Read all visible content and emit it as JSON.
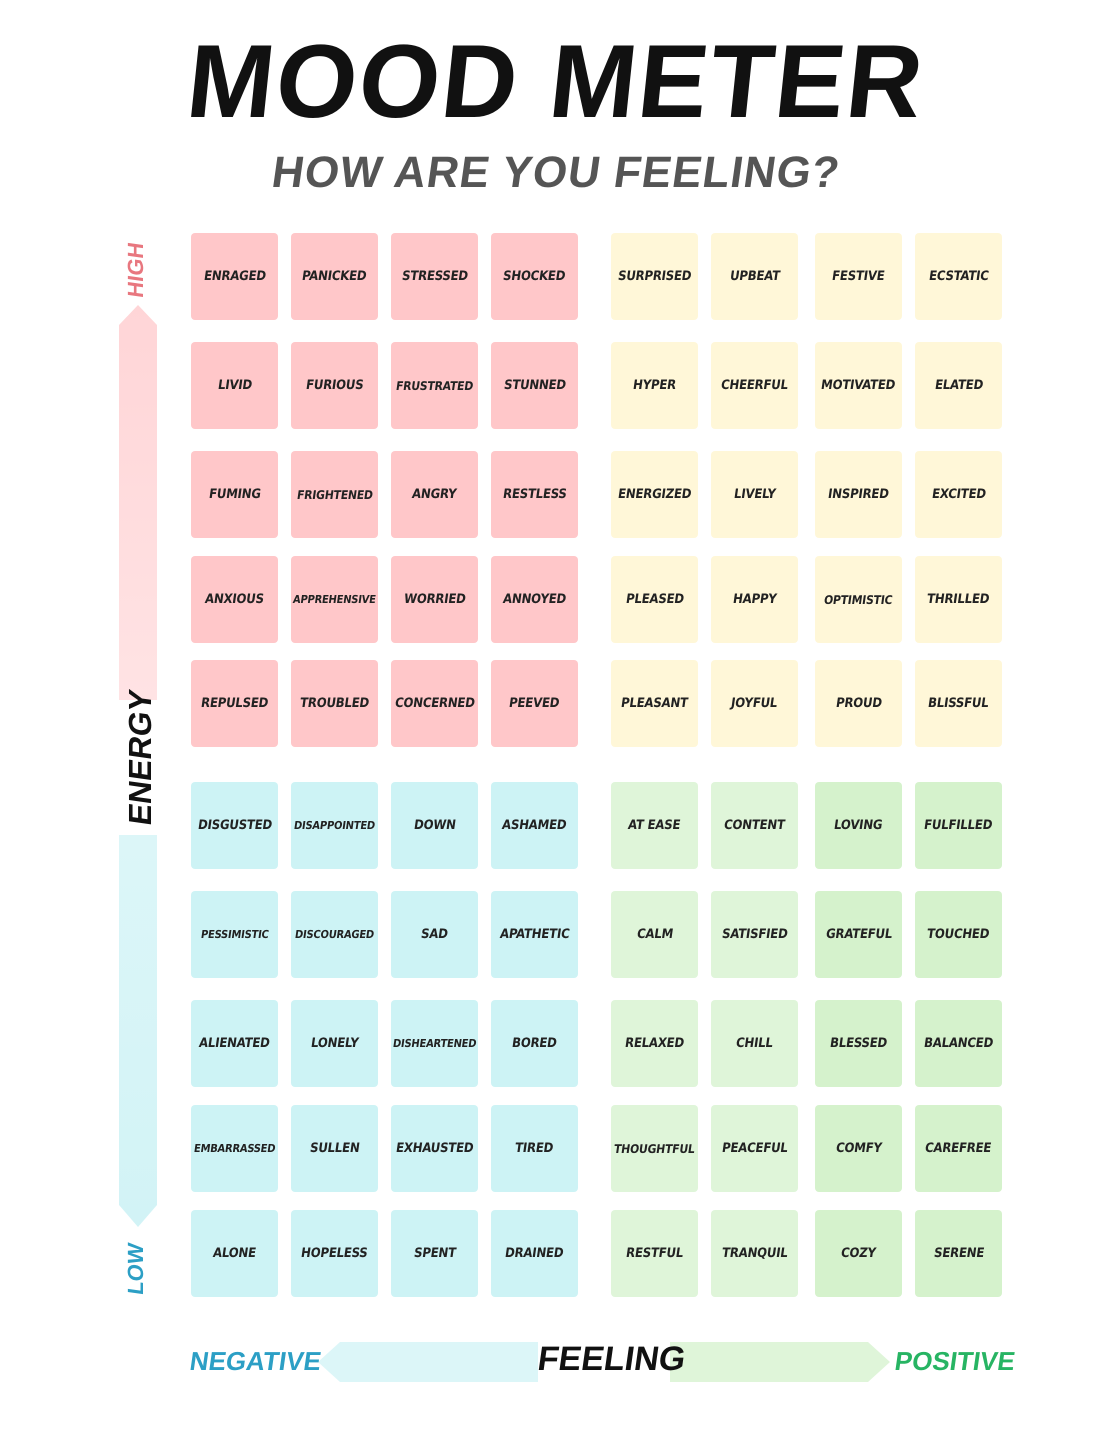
{
  "header": {
    "title": "MOOD METER",
    "subtitle": "HOW ARE YOU FEELING?"
  },
  "axes": {
    "vertical": {
      "label": "ENERGY",
      "high": "HIGH",
      "low": "LOW"
    },
    "horizontal": {
      "label": "FEELING",
      "negative": "NEGATIVE",
      "positive": "POSITIVE"
    }
  },
  "colors": {
    "high_negative": "#ffc7c9",
    "high_positive": "#fff7d8",
    "low_negative": "#cdf3f5",
    "low_positive": "#dff5d9",
    "high_label": "#e8777f",
    "low_label": "#2c9fc5",
    "negative_label": "#2c9fc5",
    "positive_label": "#27b463"
  },
  "grid": {
    "rows": [
      [
        "ENRAGED",
        "PANICKED",
        "STRESSED",
        "SHOCKED",
        "SURPRISED",
        "UPBEAT",
        "FESTIVE",
        "ECSTATIC"
      ],
      [
        "LIVID",
        "FURIOUS",
        "FRUSTRATED",
        "STUNNED",
        "HYPER",
        "CHEERFUL",
        "MOTIVATED",
        "ELATED"
      ],
      [
        "FUMING",
        "FRIGHTENED",
        "ANGRY",
        "RESTLESS",
        "ENERGIZED",
        "LIVELY",
        "INSPIRED",
        "EXCITED"
      ],
      [
        "ANXIOUS",
        "APPREHENSIVE",
        "WORRIED",
        "ANNOYED",
        "PLEASED",
        "HAPPY",
        "OPTIMISTIC",
        "THRILLED"
      ],
      [
        "REPULSED",
        "TROUBLED",
        "CONCERNED",
        "PEEVED",
        "PLEASANT",
        "JOYFUL",
        "PROUD",
        "BLISSFUL"
      ],
      [
        "DISGUSTED",
        "DISAPPOINTED",
        "DOWN",
        "ASHAMED",
        "AT EASE",
        "CONTENT",
        "LOVING",
        "FULFILLED"
      ],
      [
        "PESSIMISTIC",
        "DISCOURAGED",
        "SAD",
        "APATHETIC",
        "CALM",
        "SATISFIED",
        "GRATEFUL",
        "TOUCHED"
      ],
      [
        "ALIENATED",
        "LONELY",
        "DISHEARTENED",
        "BORED",
        "RELAXED",
        "CHILL",
        "BLESSED",
        "BALANCED"
      ],
      [
        "EMBARRASSED",
        "SULLEN",
        "EXHAUSTED",
        "TIRED",
        "THOUGHTFUL",
        "PEACEFUL",
        "COMFY",
        "CAREFREE"
      ],
      [
        "ALONE",
        "HOPELESS",
        "SPENT",
        "DRAINED",
        "RESTFUL",
        "TRANQUIL",
        "COZY",
        "SERENE"
      ]
    ]
  }
}
